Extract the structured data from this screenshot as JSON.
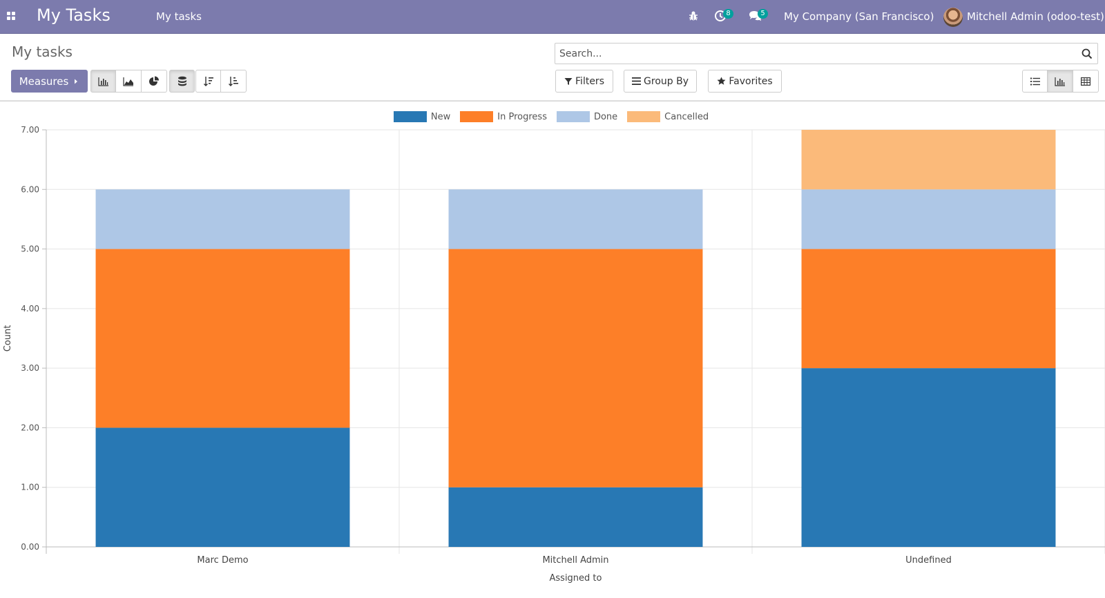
{
  "app": {
    "title": "My Tasks",
    "menu": "My tasks"
  },
  "systray": {
    "activities_count": "8",
    "messages_count": "5",
    "company": "My Company (San Francisco)",
    "user": "Mitchell Admin (odoo-test)"
  },
  "page": {
    "breadcrumb": "My tasks"
  },
  "search": {
    "placeholder": "Search..."
  },
  "toolbar": {
    "measures_label": "Measures",
    "filters_label": "Filters",
    "group_by_label": "Group By",
    "favorites_label": "Favorites"
  },
  "colors": {
    "navbar": "#7c7bad",
    "new": "#2878b4",
    "in_progress": "#fd7f28",
    "done": "#aec7e6",
    "cancelled": "#fbba7a"
  },
  "chart_data": {
    "type": "bar",
    "stacked": true,
    "categories": [
      "Marc Demo",
      "Mitchell Admin",
      "Undefined"
    ],
    "series": [
      {
        "name": "New",
        "color": "#2878b4",
        "values": [
          2,
          1,
          3
        ]
      },
      {
        "name": "In Progress",
        "color": "#fd7f28",
        "values": [
          3,
          4,
          2
        ]
      },
      {
        "name": "Done",
        "color": "#aec7e6",
        "values": [
          1,
          1,
          1
        ]
      },
      {
        "name": "Cancelled",
        "color": "#fbba7a",
        "values": [
          0,
          0,
          1
        ]
      }
    ],
    "xlabel": "Assigned to",
    "ylabel": "Count",
    "ylim": [
      0,
      7
    ],
    "yticks": [
      "0.00",
      "1.00",
      "2.00",
      "3.00",
      "4.00",
      "5.00",
      "6.00",
      "7.00"
    ],
    "legend_position": "top-center",
    "grid": true
  }
}
